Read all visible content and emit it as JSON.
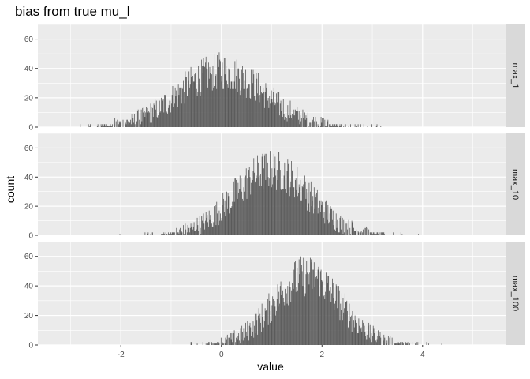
{
  "chart_data": {
    "type": "bar",
    "subtype": "faceted histogram",
    "title": "bias from true mu_l",
    "xlabel": "value",
    "ylabel": "count",
    "xlim": [
      -3.65,
      5.65
    ],
    "ylim": [
      0,
      70
    ],
    "x_ticks": [
      -2,
      0,
      2,
      4
    ],
    "x_tick_labels": [
      "-2",
      "0",
      "2",
      "4"
    ],
    "y_ticks": [
      0,
      20,
      40,
      60
    ],
    "y_tick_labels": [
      "0",
      "20",
      "40",
      "60"
    ],
    "bin_width": 0.0125,
    "grid": true,
    "legend": "none",
    "facets": [
      {
        "label": "max_1",
        "center": 0.0,
        "sd": 0.85,
        "peak": 38,
        "range": [
          -3.1,
          3.4
        ]
      },
      {
        "label": "max_10",
        "center": 1.0,
        "sd": 0.75,
        "peak": 45,
        "range": [
          -2.2,
          4.1
        ]
      },
      {
        "label": "max_100",
        "center": 1.7,
        "sd": 0.66,
        "peak": 47,
        "range": [
          -0.95,
          5.0
        ]
      }
    ],
    "colors": {
      "bar": "#595959",
      "panel_bg": "#ebebeb",
      "strip_bg": "#d9d9d9",
      "grid": "#ffffff",
      "axis_text": "#4d4d4d",
      "title": "#000000"
    }
  }
}
